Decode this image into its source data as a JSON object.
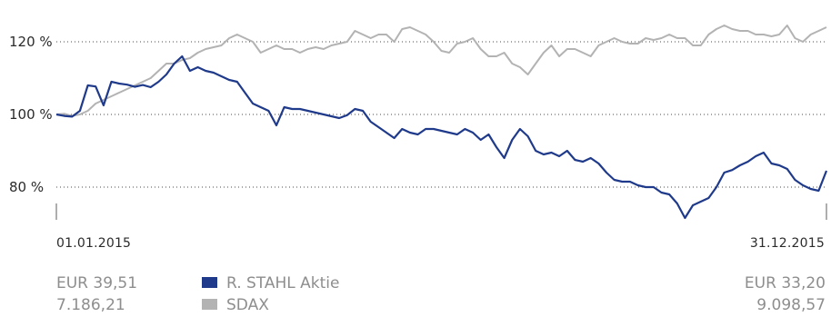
{
  "chart_data": {
    "type": "line",
    "x_labels": {
      "start": "01.01.2015",
      "end": "31.12.2015"
    },
    "y_ticks": [
      {
        "value": 80,
        "label": "80 %"
      },
      {
        "value": 100,
        "label": "100 %"
      },
      {
        "value": 120,
        "label": "120 %"
      }
    ],
    "ylim": [
      68,
      132
    ],
    "grid": true,
    "series": [
      {
        "name": "R. STAHL Aktie",
        "color": "#1f3a8a",
        "start_value": "EUR 39,51",
        "end_value": "EUR 33,20",
        "values": [
          100,
          99.6,
          99.4,
          101,
          108,
          107.7,
          102.5,
          109,
          108.5,
          108.2,
          107.6,
          108.1,
          107.5,
          109,
          111,
          114,
          116,
          112,
          113,
          112,
          111.5,
          110.5,
          109.5,
          109,
          106,
          103,
          102,
          101,
          97,
          102,
          101.5,
          101.5,
          101,
          100.5,
          100,
          99.5,
          99,
          99.8,
          101.5,
          101,
          98,
          96.5,
          95,
          93.5,
          96,
          95,
          94.5,
          96,
          96,
          95.5,
          95,
          94.5,
          96,
          95,
          93,
          94.5,
          91,
          88,
          93,
          96,
          94,
          90,
          89,
          89.5,
          88.5,
          90,
          87.5,
          87,
          88,
          86.5,
          84,
          82,
          81.5,
          81.5,
          80.5,
          80,
          80,
          78.5,
          78,
          75.5,
          71.5,
          75,
          76,
          77,
          80,
          84,
          84.7,
          86,
          87,
          88.5,
          89.5,
          86.5,
          86,
          85,
          82,
          80.5,
          79.5,
          79,
          84.5
        ]
      },
      {
        "name": "SDAX",
        "color": "#b3b3b3",
        "start_value": "7.186,21",
        "end_value": "9.098,57",
        "values": [
          100,
          100.2,
          99.6,
          100,
          101,
          103,
          104,
          105,
          106,
          107,
          108,
          109,
          110,
          112,
          114,
          114,
          115,
          115.5,
          117,
          118,
          118.5,
          119,
          121,
          122,
          121,
          120,
          117,
          118,
          119,
          118,
          118,
          117,
          118,
          118.5,
          118,
          119,
          119.5,
          120,
          123,
          122,
          121,
          122,
          122,
          120,
          123.5,
          124,
          123,
          122,
          120,
          117.5,
          117,
          119.5,
          120,
          121,
          118,
          116,
          116,
          117,
          114,
          113,
          111,
          114,
          117,
          119,
          116,
          118,
          118,
          117,
          116,
          119,
          120,
          121,
          120,
          119.5,
          119.5,
          121,
          120.5,
          121,
          122,
          121,
          121,
          119,
          119,
          122,
          123.5,
          124.5,
          123.5,
          123,
          123,
          122,
          122,
          121.5,
          122,
          124.5,
          121,
          120,
          122,
          123,
          124
        ]
      }
    ]
  }
}
